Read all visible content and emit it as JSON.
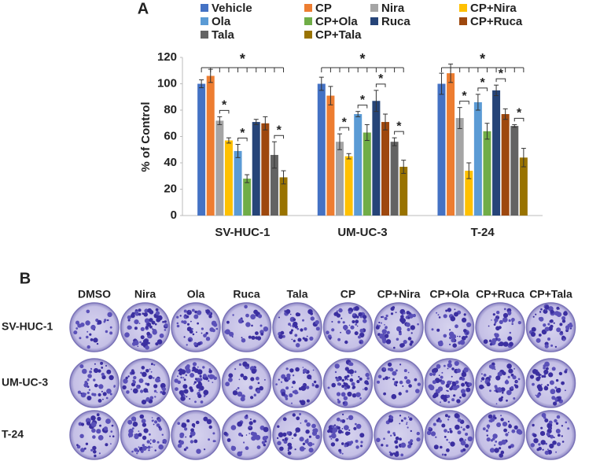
{
  "panel_a_label": "A",
  "chart_data": {
    "type": "bar",
    "categories": [
      "SV-HUC-1",
      "UM-UC-3",
      "T-24"
    ],
    "y_label": "% of Control",
    "ylim": [
      0,
      120
    ],
    "yticks": [
      0,
      20,
      40,
      60,
      80,
      100,
      120
    ],
    "series": [
      {
        "name": "Vehicle",
        "color": "#4472c4",
        "values": [
          100,
          100,
          100
        ],
        "errors": [
          3,
          5,
          8
        ]
      },
      {
        "name": "CP",
        "color": "#ed7d31",
        "values": [
          106,
          91,
          108
        ],
        "errors": [
          5,
          7,
          7
        ]
      },
      {
        "name": "Nira",
        "color": "#a5a5a5",
        "values": [
          72,
          56,
          74
        ],
        "errors": [
          3,
          6,
          8
        ]
      },
      {
        "name": "CP+Nira",
        "color": "#ffc000",
        "values": [
          57,
          45,
          34
        ],
        "errors": [
          2,
          2,
          6
        ]
      },
      {
        "name": "Ola",
        "color": "#5b9bd5",
        "values": [
          49,
          77,
          86
        ],
        "errors": [
          5,
          2,
          6
        ]
      },
      {
        "name": "CP+Ola",
        "color": "#70ad47",
        "values": [
          28,
          63,
          64
        ],
        "errors": [
          3,
          6,
          6
        ]
      },
      {
        "name": "Ruca",
        "color": "#264478",
        "values": [
          71,
          87,
          95
        ],
        "errors": [
          2,
          8,
          4
        ]
      },
      {
        "name": "CP+Ruca",
        "color": "#9e480e",
        "values": [
          70,
          71,
          77
        ],
        "errors": [
          5,
          6,
          4
        ]
      },
      {
        "name": "Tala",
        "color": "#636363",
        "values": [
          46,
          56,
          68
        ],
        "errors": [
          10,
          3,
          1
        ]
      },
      {
        "name": "CP+Tala",
        "color": "#997300",
        "values": [
          29,
          37,
          44
        ],
        "errors": [
          5,
          5,
          7
        ]
      }
    ],
    "comparisons": [
      {
        "group": "SV-HUC-1",
        "label": "*"
      },
      {
        "group": "SV-HUC-1",
        "between": [
          "Nira",
          "CP+Nira"
        ],
        "label": "*"
      },
      {
        "group": "SV-HUC-1",
        "between": [
          "Ola",
          "CP+Ola"
        ],
        "label": "*"
      },
      {
        "group": "SV-HUC-1",
        "between": [
          "Tala",
          "CP+Tala"
        ],
        "label": "*"
      },
      {
        "group": "UM-UC-3",
        "label": "*"
      },
      {
        "group": "UM-UC-3",
        "between": [
          "Nira",
          "CP+Nira"
        ],
        "label": "*"
      },
      {
        "group": "UM-UC-3",
        "between": [
          "Ola",
          "CP+Ola"
        ],
        "label": "*"
      },
      {
        "group": "UM-UC-3",
        "between": [
          "Ruca",
          "CP+Ruca"
        ],
        "label": "*"
      },
      {
        "group": "UM-UC-3",
        "between": [
          "Tala",
          "CP+Tala"
        ],
        "label": "*"
      },
      {
        "group": "T-24",
        "label": "*"
      },
      {
        "group": "T-24",
        "between": [
          "Nira",
          "CP+Nira"
        ],
        "label": "*"
      },
      {
        "group": "T-24",
        "between": [
          "Ola",
          "CP+Ola"
        ],
        "label": "*"
      },
      {
        "group": "T-24",
        "between": [
          "Ruca",
          "CP+Ruca"
        ],
        "label": "*"
      },
      {
        "group": "T-24",
        "between": [
          "Tala",
          "CP+Tala"
        ],
        "label": "*"
      }
    ]
  },
  "panel_b": {
    "label": "B",
    "columns": [
      "DMSO",
      "Nira",
      "Ola",
      "Ruca",
      "Tala",
      "CP",
      "CP+Nira",
      "CP+Ola",
      "CP+Ruca",
      "CP+Tala"
    ],
    "rows": [
      "SV-HUC-1",
      "UM-UC-3",
      "T-24"
    ]
  }
}
